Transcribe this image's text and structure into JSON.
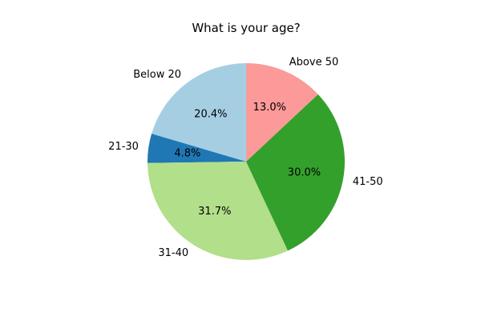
{
  "chart_data": {
    "type": "pie",
    "title": "What is your age?",
    "slices": [
      {
        "label": "Below 20",
        "value": 20.4,
        "pct_label": "20.4%",
        "color": "#a6cee3"
      },
      {
        "label": "21-30",
        "value": 4.8,
        "pct_label": "4.8%",
        "color": "#1f78b4"
      },
      {
        "label": "31-40",
        "value": 31.7,
        "pct_label": "31.7%",
        "color": "#b2df8a"
      },
      {
        "label": "41-50",
        "value": 30.0,
        "pct_label": "30.0%",
        "color": "#33a02c"
      },
      {
        "label": "Above 50",
        "value": 13.0,
        "pct_label": "13.0%",
        "color": "#fb9a99"
      }
    ],
    "start_angle_deg": 90,
    "direction": "counterclockwise",
    "legend": "none"
  }
}
